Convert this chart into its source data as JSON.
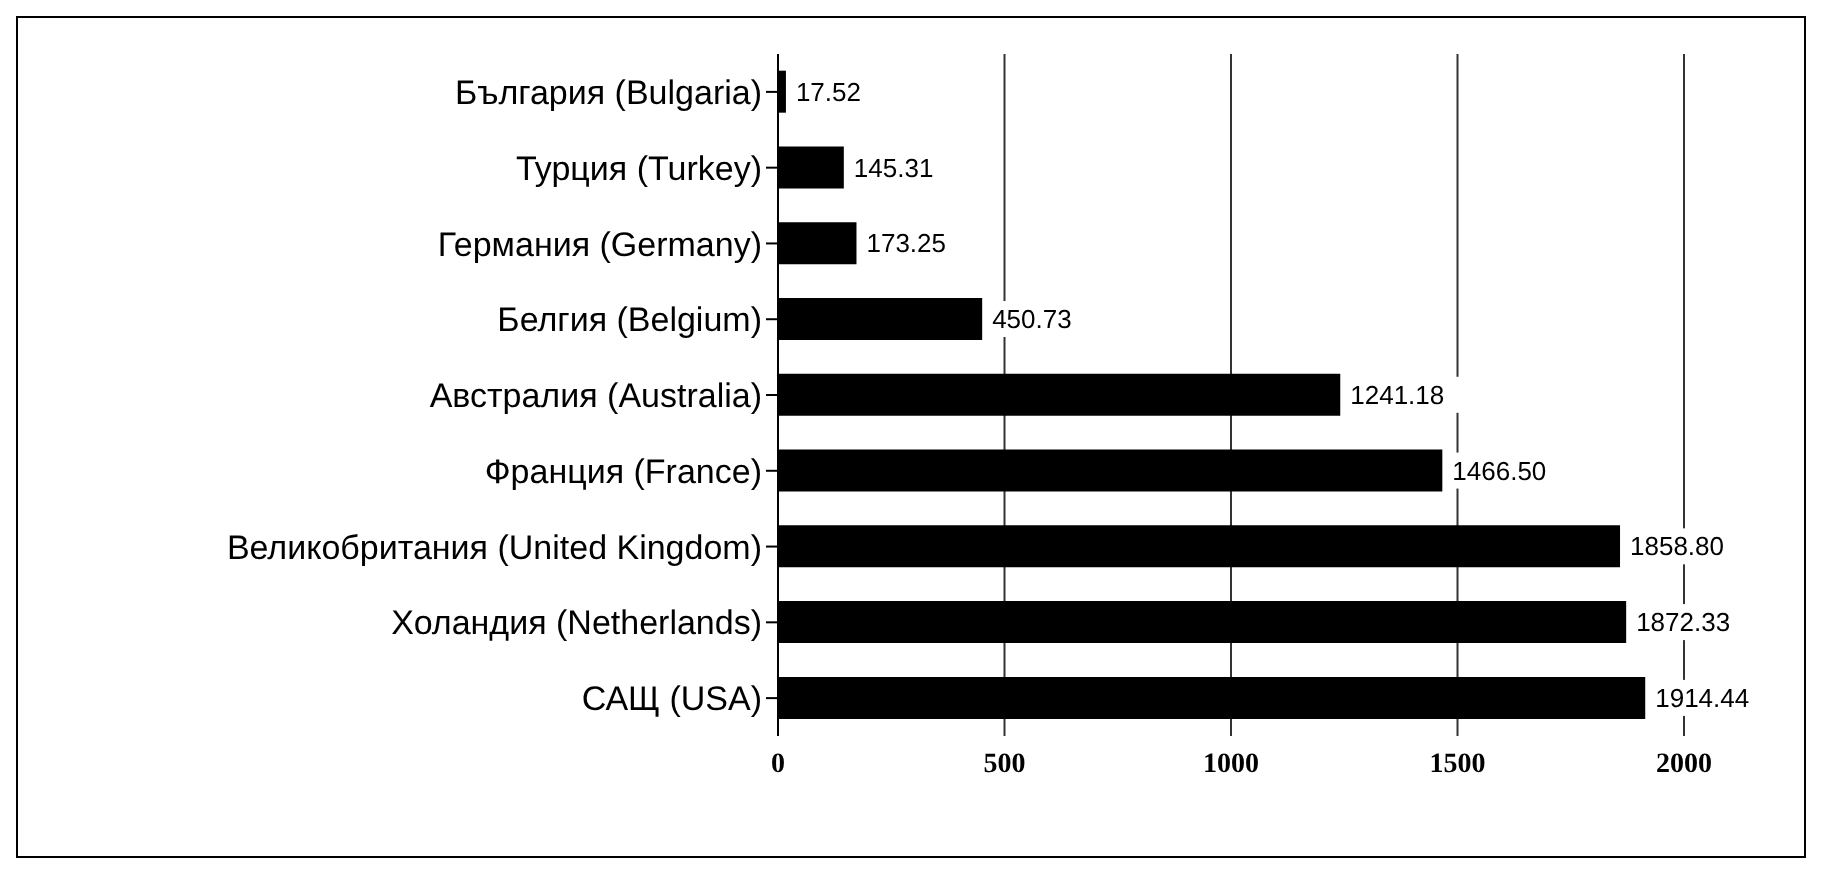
{
  "chart_data": {
    "type": "bar",
    "orientation": "horizontal",
    "categories": [
      "България (Bulgaria)",
      "Турция (Turkey)",
      "Германия (Germany)",
      "Белгия (Belgium)",
      "Австралия (Australia)",
      "Франция (France)",
      "Великобритания (United Kingdom)",
      "Холандия (Netherlands)",
      "САЩ (USA)"
    ],
    "values": [
      17.52,
      145.31,
      173.25,
      450.73,
      1241.18,
      1466.5,
      1858.8,
      1872.33,
      1914.44
    ],
    "value_labels": [
      "17.52",
      "145.31",
      "173.25",
      "450.73",
      "1241.18",
      "1466.50",
      "1858.80",
      "1872.33",
      "1914.44"
    ],
    "color": "#000000",
    "xlim": [
      0,
      2000
    ],
    "xticks": [
      0,
      500,
      1000,
      1500,
      2000
    ],
    "grid": "x"
  }
}
